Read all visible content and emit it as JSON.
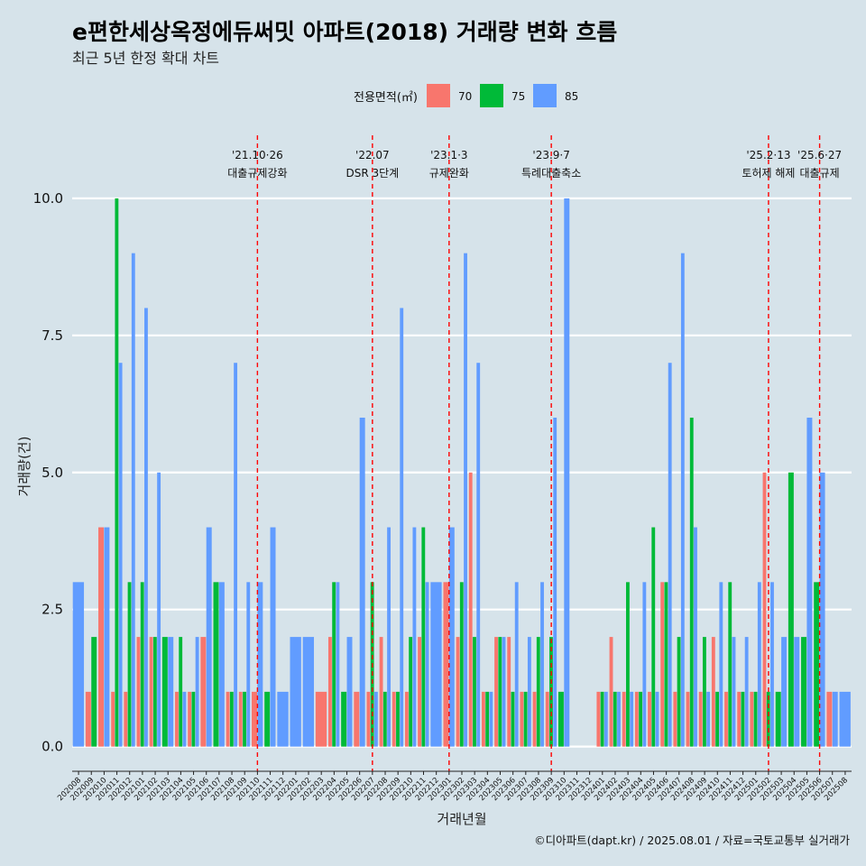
{
  "chart_data": {
    "type": "bar",
    "title": "e편한세상옥정에듀써밋 아파트(2018) 거래량 변화 흐름",
    "subtitle": "최근 5년 한정 확대 차트",
    "xlabel": "거래년월",
    "ylabel": "거래량(건)",
    "caption": "©디아파트(dapt.kr) / 2025.08.01 / 자료=국토교통부 실거래가",
    "ylim": [
      -0.45,
      11.15
    ],
    "yticks": [
      "0.0",
      "2.5",
      "5.0",
      "7.5",
      "10.0"
    ],
    "ytick_values": [
      0,
      2.5,
      5,
      7.5,
      10
    ],
    "grid": true,
    "legend": {
      "title": "전용면적(㎡)",
      "position": "top",
      "entries": [
        {
          "label": "70",
          "color": "#f8766d"
        },
        {
          "label": "75",
          "color": "#00ba38"
        },
        {
          "label": "85",
          "color": "#619cff"
        }
      ]
    },
    "categories": [
      "202008",
      "202009",
      "202010",
      "202011",
      "202012",
      "202101",
      "202102",
      "202103",
      "202104",
      "202105",
      "202106",
      "202107",
      "202108",
      "202109",
      "202110",
      "202111",
      "202112",
      "202201",
      "202202",
      "202203",
      "202204",
      "202205",
      "202206",
      "202207",
      "202208",
      "202209",
      "202210",
      "202211",
      "202212",
      "202301",
      "202302",
      "202303",
      "202304",
      "202305",
      "202306",
      "202307",
      "202308",
      "202309",
      "202310",
      "202311",
      "202312",
      "202401",
      "202402",
      "202403",
      "202404",
      "202405",
      "202406",
      "202407",
      "202408",
      "202409",
      "202410",
      "202411",
      "202412",
      "202501",
      "202502",
      "202503",
      "202504",
      "202505",
      "202506",
      "202507",
      "202508"
    ],
    "series": [
      {
        "name": "70",
        "color": "#f8766d",
        "values": [
          0,
          1,
          4,
          1,
          1,
          2,
          2,
          0,
          1,
          1,
          2,
          0,
          1,
          1,
          1,
          0,
          0,
          0,
          0,
          1,
          2,
          0,
          1,
          1,
          2,
          1,
          1,
          2,
          0,
          3,
          2,
          5,
          1,
          2,
          2,
          1,
          1,
          1,
          0,
          0,
          0,
          1,
          2,
          1,
          1,
          1,
          3,
          1,
          1,
          1,
          2,
          1,
          1,
          1,
          5,
          0,
          0,
          0,
          0,
          1,
          0
        ]
      },
      {
        "name": "75",
        "color": "#00ba38",
        "values": [
          0,
          2,
          0,
          10,
          3,
          3,
          2,
          2,
          2,
          1,
          0,
          3,
          1,
          1,
          0,
          1,
          0,
          0,
          0,
          0,
          3,
          1,
          0,
          3,
          1,
          1,
          2,
          4,
          0,
          0,
          3,
          2,
          1,
          2,
          1,
          1,
          2,
          2,
          1,
          0,
          0,
          1,
          1,
          3,
          1,
          4,
          3,
          2,
          6,
          2,
          1,
          3,
          1,
          1,
          1,
          1,
          5,
          2,
          3,
          0,
          0
        ]
      },
      {
        "name": "85",
        "color": "#619cff",
        "values": [
          3,
          0,
          4,
          7,
          9,
          8,
          5,
          2,
          1,
          2,
          4,
          3,
          7,
          3,
          3,
          4,
          1,
          2,
          2,
          0,
          3,
          2,
          6,
          1,
          4,
          8,
          4,
          3,
          3,
          4,
          9,
          7,
          1,
          2,
          3,
          2,
          3,
          6,
          10,
          0,
          0,
          1,
          1,
          1,
          3,
          1,
          7,
          9,
          4,
          1,
          3,
          2,
          2,
          3,
          3,
          2,
          2,
          6,
          5,
          1,
          1
        ]
      }
    ],
    "events": [
      {
        "date": "'21.10·26",
        "label": "대출규제강화",
        "month_index": 14
      },
      {
        "date": "'22.07",
        "label": "DSR 3단계",
        "month_index": 23
      },
      {
        "date": "'23.1·3",
        "label": "규제완화",
        "month_index": 29
      },
      {
        "date": "'23.9·7",
        "label": "특례대출축소",
        "month_index": 37
      },
      {
        "date": "'25.2·13",
        "label": "토허제 해제",
        "month_index": 54
      },
      {
        "date": "'25.6·27",
        "label": "대출규제",
        "month_index": 58
      }
    ]
  }
}
